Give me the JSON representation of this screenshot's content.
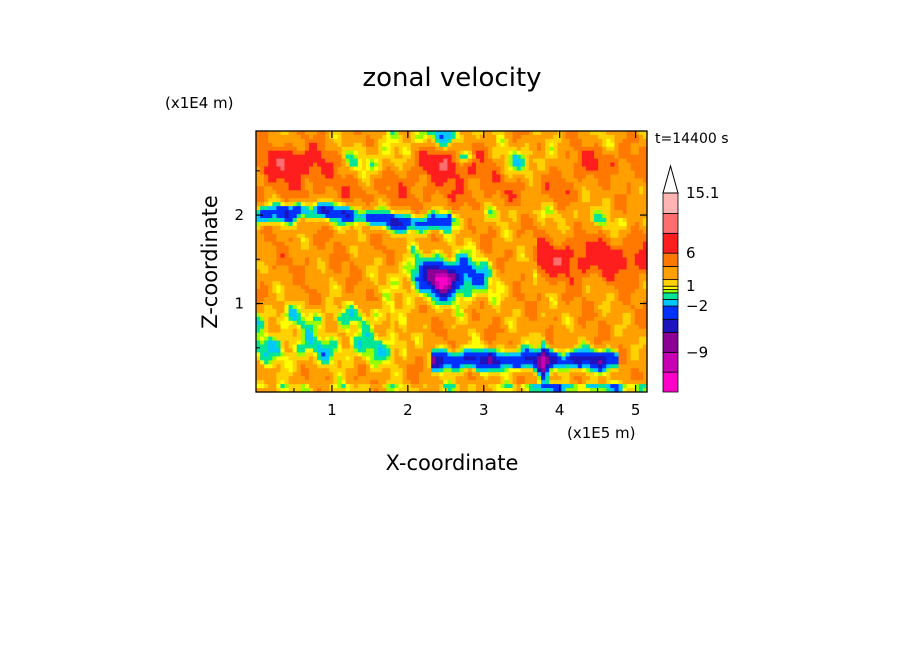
{
  "chart_data": {
    "type": "heatmap",
    "title": "zonal velocity",
    "xlabel": "X-coordinate",
    "ylabel": "Z-coordinate",
    "x_unit_label": "(x1E5 m)",
    "y_unit_label": "(x1E4 m)",
    "time_label": "t=14400 s",
    "xlim": [
      0,
      5.15
    ],
    "ylim": [
      0,
      2.95
    ],
    "x_ticks": [
      1,
      2,
      3,
      4,
      5
    ],
    "y_ticks": [
      1,
      2
    ],
    "colorbar": {
      "extend": "max",
      "labels": [
        {
          "value": 15.1,
          "text": "15.1"
        },
        {
          "value": 6,
          "text": "6"
        },
        {
          "value": 1,
          "text": "1"
        },
        {
          "value": -2,
          "text": "−2"
        },
        {
          "value": -9,
          "text": "−9"
        }
      ],
      "levels": [
        {
          "low": -15.0,
          "high": -12.0,
          "color": "#ff00c8"
        },
        {
          "low": -12.0,
          "high": -9.0,
          "color": "#c800b4"
        },
        {
          "low": -9.0,
          "high": -6.0,
          "color": "#8c0096"
        },
        {
          "low": -6.0,
          "high": -4.0,
          "color": "#1e14be"
        },
        {
          "low": -4.0,
          "high": -2.0,
          "color": "#0032ff"
        },
        {
          "low": -2.0,
          "high": -1.0,
          "color": "#00c8ff"
        },
        {
          "low": -1.0,
          "high": 0.0,
          "color": "#00e696"
        },
        {
          "low": 0.0,
          "high": 0.5,
          "color": "#96ff00"
        },
        {
          "low": 0.5,
          "high": 1.0,
          "color": "#ffff00"
        },
        {
          "low": 1.0,
          "high": 2.0,
          "color": "#ffd200"
        },
        {
          "low": 2.0,
          "high": 4.0,
          "color": "#ffa000"
        },
        {
          "low": 4.0,
          "high": 6.0,
          "color": "#ff7800"
        },
        {
          "low": 6.0,
          "high": 9.0,
          "color": "#ff1e1e"
        },
        {
          "low": 9.0,
          "high": 12.0,
          "color": "#ff6e6e"
        },
        {
          "low": 12.0,
          "high": 15.1,
          "color": "#ffb4b4"
        },
        {
          "low": 15.1,
          "high": 18.0,
          "color": "#ffffff"
        }
      ]
    }
  }
}
